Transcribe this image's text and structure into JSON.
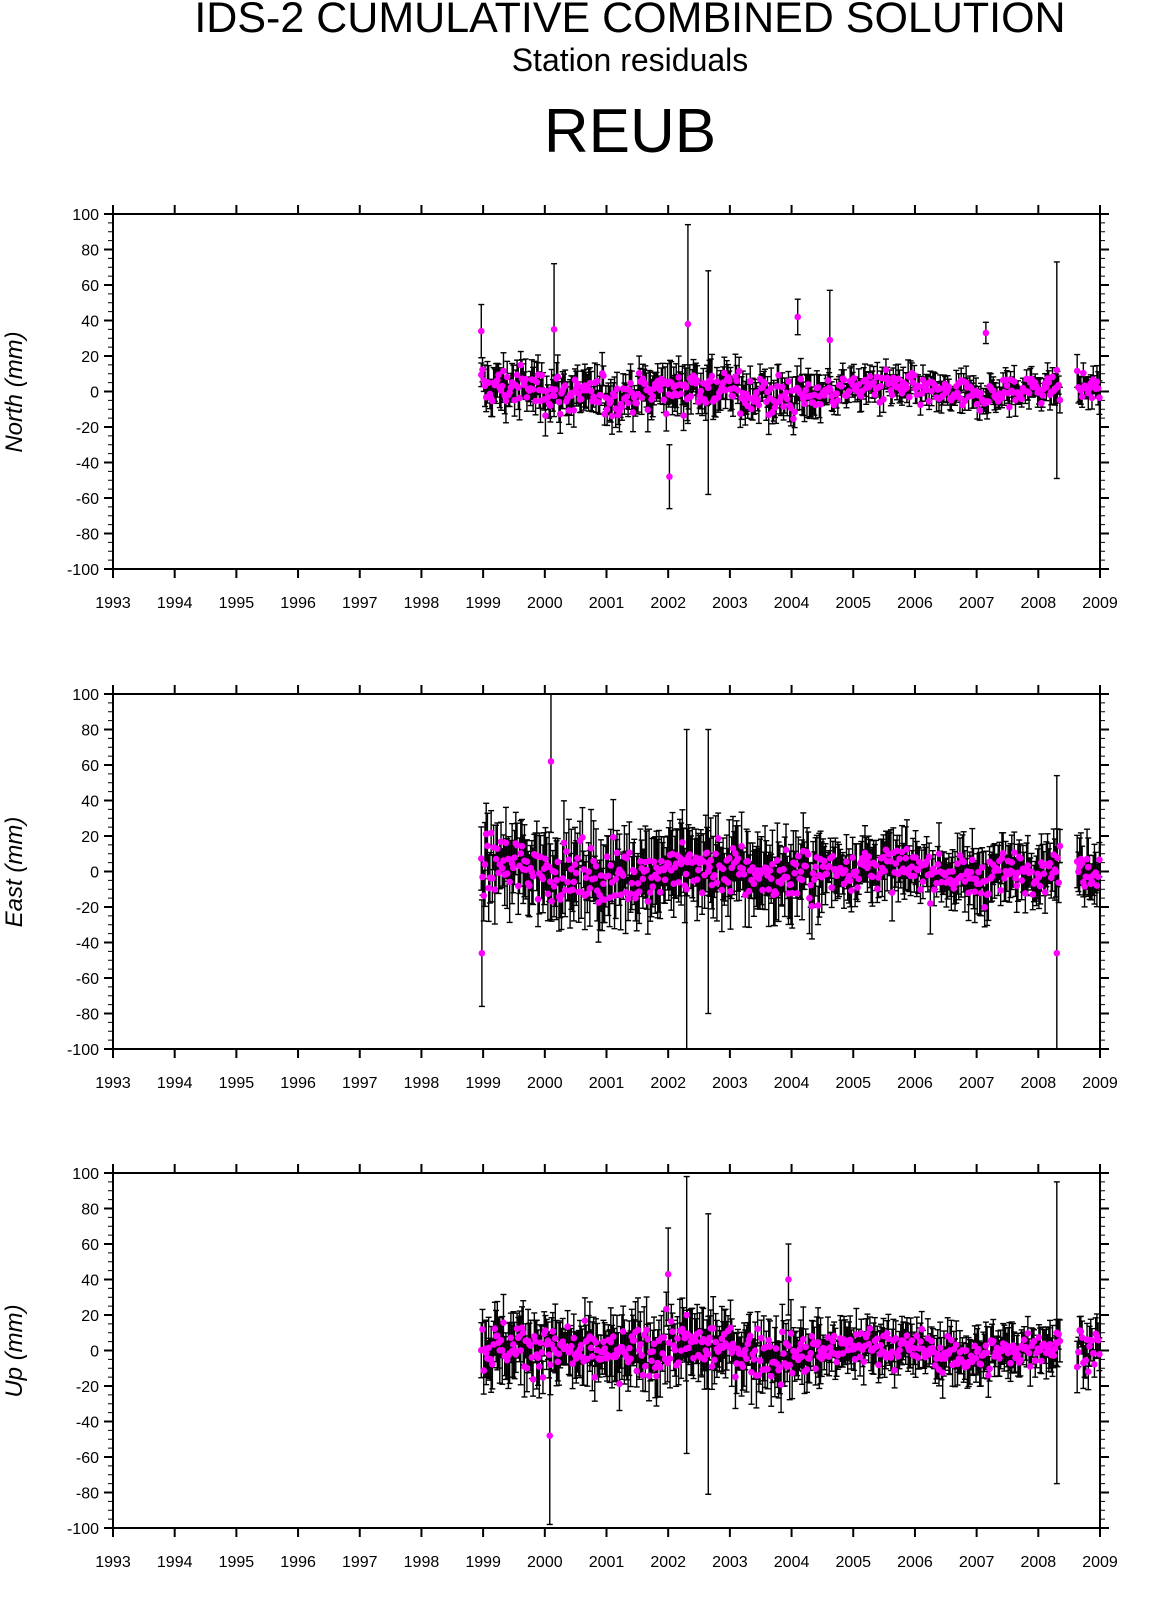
{
  "header": {
    "title": "IDS-2 CUMULATIVE COMBINED SOLUTION",
    "subtitle": "Station residuals",
    "station": "REUB"
  },
  "colors": {
    "marker": "#ff00ff",
    "errorbar": "#000000",
    "axes": "#000000"
  },
  "chart_data": [
    {
      "type": "scatter",
      "component": "north",
      "ylabel": "North (mm)",
      "xlim": [
        1993,
        2009
      ],
      "ylim": [
        -100,
        100
      ],
      "xticks": [
        "1993",
        "1994",
        "1995",
        "1996",
        "1997",
        "1998",
        "1999",
        "2000",
        "2001",
        "2002",
        "2003",
        "2004",
        "2005",
        "2006",
        "2007",
        "2008",
        "2009"
      ],
      "yticks": [
        "100",
        "80",
        "60",
        "40",
        "20",
        "0",
        "-20",
        "-40",
        "-60",
        "-80",
        "-100"
      ],
      "error_bars": true,
      "data_start": 1998.97,
      "data_end": 2009.0,
      "gap": [
        2008.35,
        2008.62
      ],
      "key_points": [
        {
          "x": 1998.97,
          "y": 34,
          "err": 15
        },
        {
          "x": 2000.15,
          "y": 35,
          "err": 37
        },
        {
          "x": 2002.02,
          "y": -48,
          "err": 18
        },
        {
          "x": 2002.32,
          "y": 38,
          "err": 56
        },
        {
          "x": 2002.65,
          "y": 5,
          "err": 63
        },
        {
          "x": 2004.1,
          "y": 42,
          "err": 10
        },
        {
          "x": 2004.62,
          "y": 29,
          "err": 28
        },
        {
          "x": 2007.15,
          "y": 33,
          "err": 6
        },
        {
          "x": 2008.3,
          "y": 12,
          "err": 61
        }
      ]
    },
    {
      "type": "scatter",
      "component": "east",
      "ylabel": "East (mm)",
      "xlim": [
        1993,
        2009
      ],
      "ylim": [
        -100,
        100
      ],
      "xticks": [
        "1993",
        "1994",
        "1995",
        "1996",
        "1997",
        "1998",
        "1999",
        "2000",
        "2001",
        "2002",
        "2003",
        "2004",
        "2005",
        "2006",
        "2007",
        "2008",
        "2009"
      ],
      "yticks": [
        "100",
        "80",
        "60",
        "40",
        "20",
        "0",
        "-20",
        "-40",
        "-60",
        "-80",
        "-100"
      ],
      "error_bars": true,
      "data_start": 1998.97,
      "data_end": 2009.0,
      "gap": [
        2008.35,
        2008.62
      ],
      "key_points": [
        {
          "x": 1998.98,
          "y": -46,
          "err": 30
        },
        {
          "x": 2000.1,
          "y": 62,
          "err": 40
        },
        {
          "x": 2002.3,
          "y": -10,
          "err": 90
        },
        {
          "x": 2002.65,
          "y": 0,
          "err": 80
        },
        {
          "x": 2008.3,
          "y": -46,
          "err": 100
        }
      ]
    },
    {
      "type": "scatter",
      "component": "up",
      "ylabel": "Up (mm)",
      "xlim": [
        1993,
        2009
      ],
      "ylim": [
        -100,
        100
      ],
      "xticks": [
        "1993",
        "1994",
        "1995",
        "1996",
        "1997",
        "1998",
        "1999",
        "2000",
        "2001",
        "2002",
        "2003",
        "2004",
        "2005",
        "2006",
        "2007",
        "2008",
        "2009"
      ],
      "yticks": [
        "100",
        "80",
        "60",
        "40",
        "20",
        "0",
        "-20",
        "-40",
        "-60",
        "-80",
        "-100"
      ],
      "error_bars": true,
      "data_start": 1998.97,
      "data_end": 2009.0,
      "gap": [
        2008.35,
        2008.62
      ],
      "key_points": [
        {
          "x": 2000.08,
          "y": -48,
          "err": 50
        },
        {
          "x": 2002.0,
          "y": 43,
          "err": 26
        },
        {
          "x": 2002.3,
          "y": 20,
          "err": 78
        },
        {
          "x": 2002.65,
          "y": -2,
          "err": 79
        },
        {
          "x": 2003.95,
          "y": 40,
          "err": 20
        },
        {
          "x": 2008.3,
          "y": 10,
          "err": 85
        }
      ]
    }
  ]
}
